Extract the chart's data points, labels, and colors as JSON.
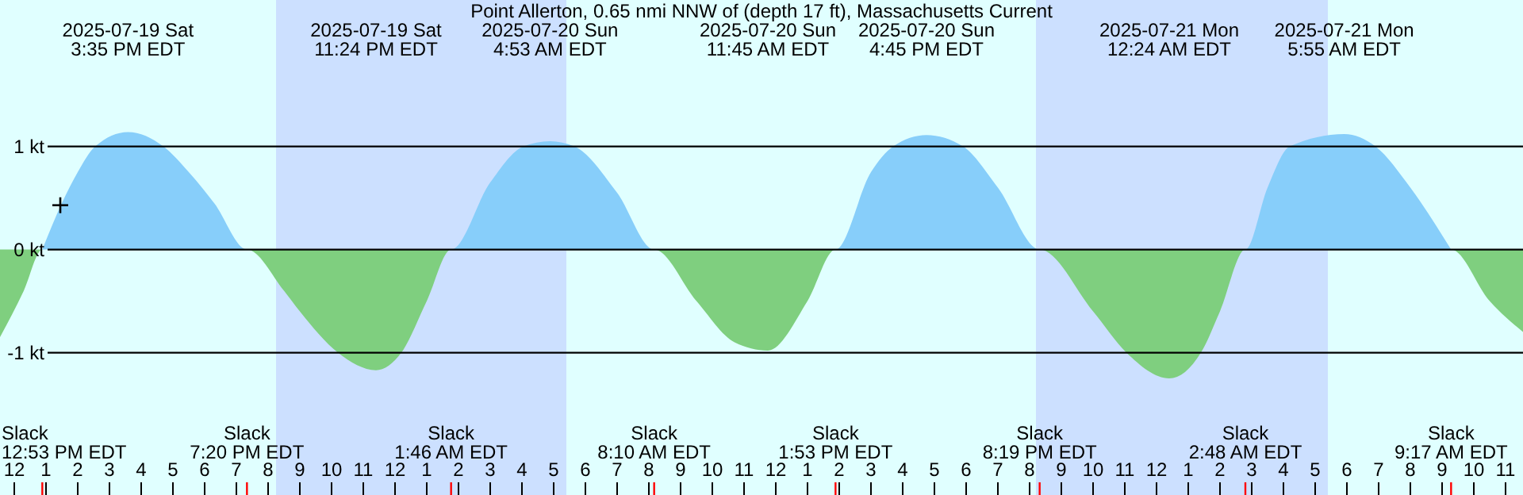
{
  "chart_data": {
    "type": "area",
    "title": "Point Allerton, 0.65 nmi NNW of (depth 17 ft), Massachusetts Current",
    "xlim": [
      "2025-07-19T11:33",
      "2025-07-21T11:33"
    ],
    "xticks": [
      {
        "value": "2025-07-19T12:00",
        "label": "12"
      },
      {
        "value": "2025-07-19T13:00",
        "label": "1"
      },
      {
        "value": "2025-07-19T14:00",
        "label": "2"
      },
      {
        "value": "2025-07-19T15:00",
        "label": "3"
      },
      {
        "value": "2025-07-19T16:00",
        "label": "4"
      },
      {
        "value": "2025-07-19T17:00",
        "label": "5"
      },
      {
        "value": "2025-07-19T18:00",
        "label": "6"
      },
      {
        "value": "2025-07-19T19:00",
        "label": "7"
      },
      {
        "value": "2025-07-19T20:00",
        "label": "8"
      },
      {
        "value": "2025-07-19T21:00",
        "label": "9"
      },
      {
        "value": "2025-07-19T22:00",
        "label": "10"
      },
      {
        "value": "2025-07-19T23:00",
        "label": "11"
      },
      {
        "value": "2025-07-20T00:00",
        "label": "12"
      },
      {
        "value": "2025-07-20T01:00",
        "label": "1"
      },
      {
        "value": "2025-07-20T02:00",
        "label": "2"
      },
      {
        "value": "2025-07-20T03:00",
        "label": "3"
      },
      {
        "value": "2025-07-20T04:00",
        "label": "4"
      },
      {
        "value": "2025-07-20T05:00",
        "label": "5"
      },
      {
        "value": "2025-07-20T06:00",
        "label": "6"
      },
      {
        "value": "2025-07-20T07:00",
        "label": "7"
      },
      {
        "value": "2025-07-20T08:00",
        "label": "8"
      },
      {
        "value": "2025-07-20T09:00",
        "label": "9"
      },
      {
        "value": "2025-07-20T10:00",
        "label": "10"
      },
      {
        "value": "2025-07-20T11:00",
        "label": "11"
      },
      {
        "value": "2025-07-20T12:00",
        "label": "12"
      },
      {
        "value": "2025-07-20T13:00",
        "label": "1"
      },
      {
        "value": "2025-07-20T14:00",
        "label": "2"
      },
      {
        "value": "2025-07-20T15:00",
        "label": "3"
      },
      {
        "value": "2025-07-20T16:00",
        "label": "4"
      },
      {
        "value": "2025-07-20T17:00",
        "label": "5"
      },
      {
        "value": "2025-07-20T18:00",
        "label": "6"
      },
      {
        "value": "2025-07-20T19:00",
        "label": "7"
      },
      {
        "value": "2025-07-20T20:00",
        "label": "8"
      },
      {
        "value": "2025-07-20T21:00",
        "label": "9"
      },
      {
        "value": "2025-07-20T22:00",
        "label": "10"
      },
      {
        "value": "2025-07-20T23:00",
        "label": "11"
      },
      {
        "value": "2025-07-21T00:00",
        "label": "12"
      },
      {
        "value": "2025-07-21T01:00",
        "label": "1"
      },
      {
        "value": "2025-07-21T02:00",
        "label": "2"
      },
      {
        "value": "2025-07-21T03:00",
        "label": "3"
      },
      {
        "value": "2025-07-21T04:00",
        "label": "4"
      },
      {
        "value": "2025-07-21T05:00",
        "label": "5"
      },
      {
        "value": "2025-07-21T06:00",
        "label": "6"
      },
      {
        "value": "2025-07-21T07:00",
        "label": "7"
      },
      {
        "value": "2025-07-21T08:00",
        "label": "8"
      },
      {
        "value": "2025-07-21T09:00",
        "label": "9"
      },
      {
        "value": "2025-07-21T10:00",
        "label": "10"
      },
      {
        "value": "2025-07-21T11:00",
        "label": "11"
      }
    ],
    "ylim": [
      -2.38,
      2.42
    ],
    "yticks": [
      {
        "value": 1,
        "label": "1 kt"
      },
      {
        "value": 0,
        "label": "0 kt"
      },
      {
        "value": -1,
        "label": "-1 kt"
      }
    ],
    "grid": "y",
    "bands": [
      {
        "axis": "x",
        "from": "2025-07-19T20:15",
        "to": "2025-07-20T05:24",
        "color": "#cce0ff"
      },
      {
        "axis": "x",
        "from": "2025-07-20T20:12",
        "to": "2025-07-21T05:24",
        "color": "#cce0ff"
      }
    ],
    "series": [
      {
        "color": "#87cefa",
        "x": [
          "2025-07-19T12:53",
          "2025-07-19T13:30",
          "2025-07-19T14:00",
          "2025-07-19T14:33",
          "2025-07-19T15:35",
          "2025-07-19T16:42",
          "2025-07-19T17:30",
          "2025-07-19T18:18",
          "2025-07-19T19:20",
          "2025-07-20T01:46",
          "2025-07-20T03:00",
          "2025-07-20T04:03",
          "2025-07-20T04:53",
          "2025-07-20T05:39",
          "2025-07-20T07:00",
          "2025-07-20T08:10",
          "2025-07-20T13:53",
          "2025-07-20T15:00",
          "2025-07-20T15:42",
          "2025-07-20T16:45",
          "2025-07-20T17:54",
          "2025-07-20T19:00",
          "2025-07-20T20:19",
          "2025-07-21T02:48",
          "2025-07-21T03:30",
          "2025-07-21T04:12",
          "2025-07-21T05:55",
          "2025-07-21T06:54",
          "2025-07-21T08:00",
          "2025-07-21T09:17"
        ],
        "values": [
          0,
          0.45,
          0.75,
          1.0,
          1.14,
          1.0,
          0.75,
          0.45,
          0,
          0,
          0.65,
          1.0,
          1.05,
          1.0,
          0.55,
          0,
          0,
          0.75,
          1.0,
          1.11,
          1.0,
          0.6,
          0,
          0,
          0.6,
          1.0,
          1.12,
          1.0,
          0.6,
          0
        ]
      },
      {
        "color": "#7fcf7f",
        "x": [
          "2025-07-19T11:33",
          "2025-07-19T12:18",
          "2025-07-19T12:53",
          "2025-07-19T19:20",
          "2025-07-19T20:30",
          "2025-07-19T21:00",
          "2025-07-19T22:12",
          "2025-07-19T23:24",
          "2025-07-20T00:12",
          "2025-07-20T01:00",
          "2025-07-20T01:46",
          "2025-07-20T08:10",
          "2025-07-20T09:30",
          "2025-07-20T10:42",
          "2025-07-20T11:45",
          "2025-07-20T13:00",
          "2025-07-20T13:53",
          "2025-07-20T20:19",
          "2025-07-20T22:00",
          "2025-07-20T23:03",
          "2025-07-21T00:24",
          "2025-07-21T01:24",
          "2025-07-21T02:00",
          "2025-07-21T02:48",
          "2025-07-21T09:17",
          "2025-07-21T10:30",
          "2025-07-21T11:33"
        ],
        "values": [
          -0.85,
          -0.4,
          0,
          0,
          -0.4,
          -0.6,
          -1.0,
          -1.17,
          -1.0,
          -0.5,
          0,
          0,
          -0.5,
          -0.9,
          -0.98,
          -0.5,
          0,
          0,
          -0.6,
          -1.0,
          -1.25,
          -1.0,
          -0.6,
          0,
          0,
          -0.5,
          -0.8
        ]
      },
      {
        "type": "scatter",
        "marker": "cross",
        "color": "#000000",
        "x": [
          "2025-07-19T13:27"
        ],
        "values": [
          0.43
        ]
      }
    ],
    "annotations": [
      "2025-07-19 Sat\n3:35 PM EDT",
      "2025-07-19 Sat\n11:24 PM EDT",
      "2025-07-20 Sun\n4:53 AM EDT",
      "2025-07-20 Sun\n11:45 AM EDT",
      "2025-07-20 Sun\n4:45 PM EDT",
      "2025-07-21 Mon\n12:24 AM EDT",
      "2025-07-21 Mon\n5:55 AM EDT",
      "Slack\n12:53 PM EDT",
      "Slack\n7:20 PM EDT",
      "Slack\n1:46 AM EDT",
      "Slack\n8:10 AM EDT",
      "Slack\n1:53 PM EDT",
      "Slack\n8:19 PM EDT",
      "Slack\n2:48 AM EDT",
      "Slack\n9:17 AM EDT"
    ]
  }
}
